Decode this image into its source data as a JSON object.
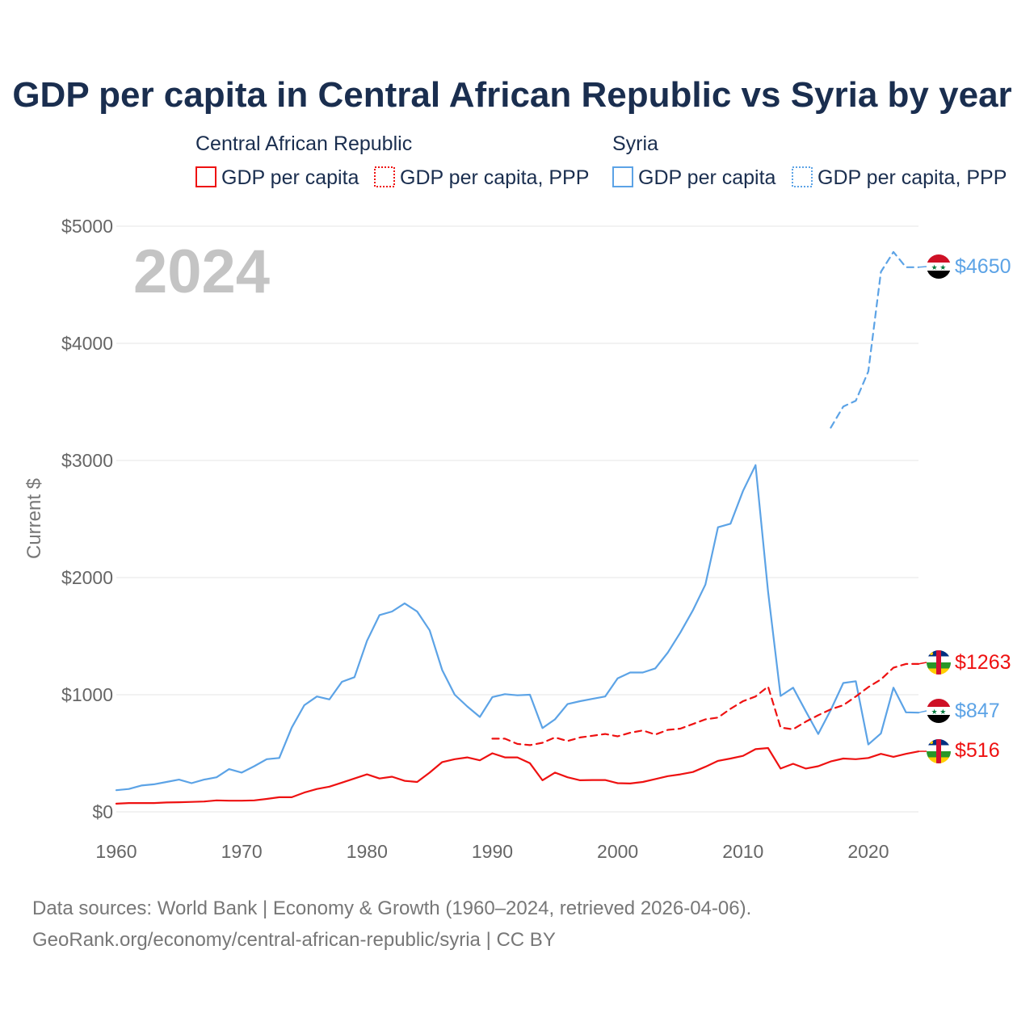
{
  "title": "GDP per capita in Central African Republic vs Syria by year",
  "year_watermark": "2024",
  "legend": {
    "groups": [
      {
        "name": "Central African Republic",
        "items": [
          "GDP per capita",
          "GDP per capita, PPP"
        ]
      },
      {
        "name": "Syria",
        "items": [
          "GDP per capita",
          "GDP per capita, PPP"
        ]
      }
    ]
  },
  "colors": {
    "car": "#ee1111",
    "syria": "#5ca3e6",
    "grid": "#e6e6e6",
    "title": "#1a2e4f"
  },
  "footer": {
    "line1": "Data sources: World Bank | Economy & Growth (1960–2024, retrieved 2026-04-06).",
    "line2": "GeoRank.org/economy/central-african-republic/syria | CC BY"
  },
  "end_labels": {
    "syria_ppp": "$4650",
    "car_ppp": "$1263",
    "syria_gdp": "$847",
    "car_gdp": "$516"
  },
  "chart_data": {
    "type": "line",
    "ylabel": "Current $",
    "xlabel": "",
    "xlim": [
      1960,
      2024
    ],
    "ylim": [
      0,
      5000
    ],
    "xticks": [
      1960,
      1970,
      1980,
      1990,
      2000,
      2010,
      2020
    ],
    "yticks": [
      0,
      1000,
      2000,
      3000,
      4000,
      5000
    ],
    "ytick_labels": [
      "$0",
      "$1000",
      "$2000",
      "$3000",
      "$4000",
      "$5000"
    ],
    "series": [
      {
        "name": "Syria GDP per capita",
        "country": "Syria",
        "style": "solid",
        "color": "#5ca3e6",
        "x": [
          1960,
          1961,
          1962,
          1963,
          1964,
          1965,
          1966,
          1967,
          1968,
          1969,
          1970,
          1971,
          1972,
          1973,
          1974,
          1975,
          1976,
          1977,
          1978,
          1979,
          1980,
          1981,
          1982,
          1983,
          1984,
          1985,
          1986,
          1987,
          1988,
          1989,
          1990,
          1991,
          1992,
          1993,
          1994,
          1995,
          1996,
          1997,
          1998,
          1999,
          2000,
          2001,
          2002,
          2003,
          2004,
          2005,
          2006,
          2007,
          2008,
          2009,
          2010,
          2011,
          2012,
          2013,
          2014,
          2015,
          2016,
          2017,
          2018,
          2019,
          2020,
          2021,
          2022,
          2023,
          2024
        ],
        "values": [
          185,
          195,
          225,
          235,
          255,
          275,
          245,
          275,
          295,
          365,
          335,
          390,
          450,
          460,
          720,
          910,
          985,
          960,
          1110,
          1150,
          1460,
          1680,
          1710,
          1780,
          1710,
          1550,
          1210,
          1000,
          900,
          810,
          980,
          1005,
          995,
          1000,
          715,
          790,
          920,
          945,
          965,
          985,
          1140,
          1190,
          1190,
          1225,
          1360,
          1530,
          1720,
          1940,
          2430,
          2460,
          2740,
          2960,
          1880,
          990,
          1060,
          860,
          665,
          870,
          1100,
          1115,
          575,
          670,
          1060,
          850,
          847
        ]
      },
      {
        "name": "Syria GDP per capita, PPP",
        "country": "Syria",
        "style": "dashed",
        "color": "#5ca3e6",
        "x": [
          2017,
          2018,
          2019,
          2020,
          2021,
          2022,
          2023,
          2024
        ],
        "values": [
          3280,
          3460,
          3510,
          3760,
          4610,
          4780,
          4650,
          4650
        ]
      },
      {
        "name": "Central African Republic GDP per capita",
        "country": "Central African Republic",
        "style": "solid",
        "color": "#ee1111",
        "x": [
          1960,
          1961,
          1962,
          1963,
          1964,
          1965,
          1966,
          1967,
          1968,
          1969,
          1970,
          1971,
          1972,
          1973,
          1974,
          1975,
          1976,
          1977,
          1978,
          1979,
          1980,
          1981,
          1982,
          1983,
          1984,
          1985,
          1986,
          1987,
          1988,
          1989,
          1990,
          1991,
          1992,
          1993,
          1994,
          1995,
          1996,
          1997,
          1998,
          1999,
          2000,
          2001,
          2002,
          2003,
          2004,
          2005,
          2006,
          2007,
          2008,
          2009,
          2010,
          2011,
          2012,
          2013,
          2014,
          2015,
          2016,
          2017,
          2018,
          2019,
          2020,
          2021,
          2022,
          2023,
          2024
        ],
        "values": [
          70,
          75,
          75,
          75,
          80,
          82,
          85,
          88,
          98,
          95,
          95,
          98,
          110,
          125,
          125,
          165,
          195,
          215,
          250,
          285,
          320,
          285,
          300,
          265,
          255,
          335,
          425,
          450,
          465,
          440,
          500,
          465,
          465,
          415,
          270,
          335,
          295,
          270,
          272,
          272,
          245,
          242,
          255,
          280,
          305,
          320,
          340,
          385,
          435,
          455,
          478,
          535,
          545,
          370,
          410,
          370,
          390,
          430,
          455,
          450,
          460,
          495,
          470,
          495,
          516
        ]
      },
      {
        "name": "Central African Republic GDP per capita, PPP",
        "country": "Central African Republic",
        "style": "dashed",
        "color": "#ee1111",
        "x": [
          1990,
          1991,
          1992,
          1993,
          1994,
          1995,
          1996,
          1997,
          1998,
          1999,
          2000,
          2001,
          2002,
          2003,
          2004,
          2005,
          2006,
          2007,
          2008,
          2009,
          2010,
          2011,
          2012,
          2013,
          2014,
          2015,
          2016,
          2017,
          2018,
          2019,
          2020,
          2021,
          2022,
          2023,
          2024
        ],
        "values": [
          625,
          625,
          580,
          570,
          590,
          635,
          605,
          635,
          650,
          665,
          645,
          675,
          695,
          660,
          700,
          710,
          750,
          790,
          805,
          880,
          945,
          985,
          1070,
          720,
          705,
          770,
          825,
          875,
          910,
          985,
          1065,
          1130,
          1230,
          1263,
          1263
        ]
      }
    ]
  }
}
